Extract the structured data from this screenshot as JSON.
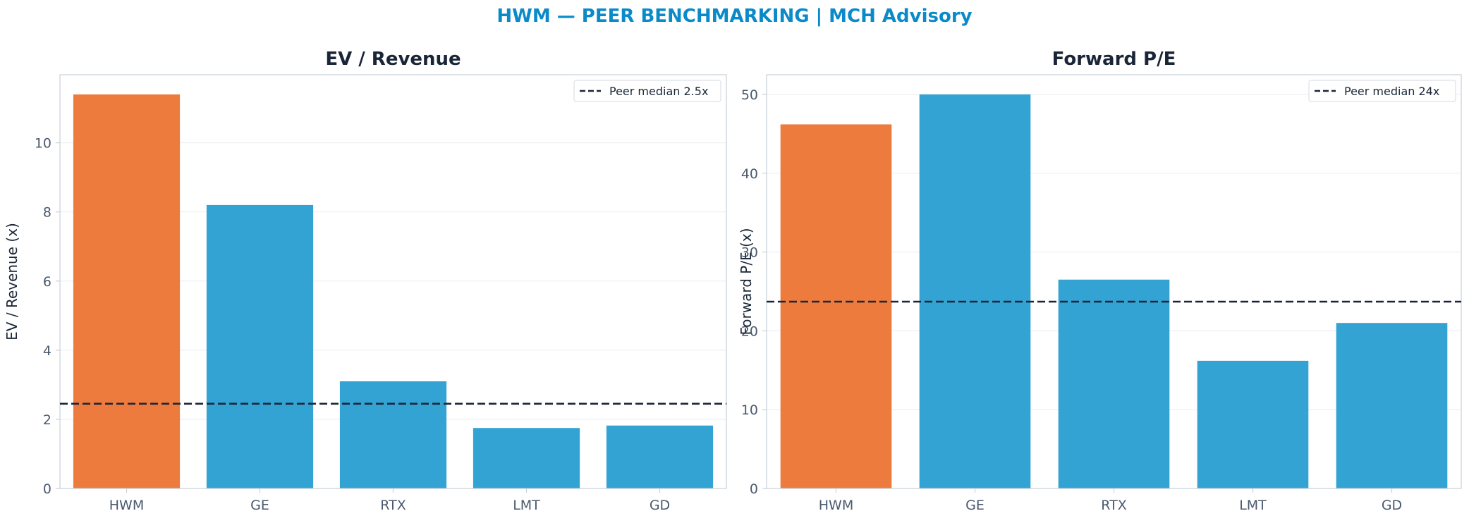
{
  "suptitle": "HWM — PEER BENCHMARKING | MCH Advisory",
  "colors": {
    "highlight": "#ee7b3e",
    "peer": "#33a3d4",
    "median_line": "#1a2638",
    "title": "#0b8ac9"
  },
  "chart_data": [
    {
      "type": "bar",
      "title": "EV / Revenue",
      "ylabel": "EV / Revenue (x)",
      "categories": [
        "HWM",
        "GE",
        "RTX",
        "LMT",
        "GD"
      ],
      "values": [
        11.4,
        8.2,
        3.1,
        1.75,
        1.82
      ],
      "highlight_index": 0,
      "ylim": [
        0,
        11.97
      ],
      "yticks": [
        0,
        2,
        4,
        6,
        8,
        10
      ],
      "reference_line": {
        "value": 2.45,
        "label": "Peer median 2.5x"
      },
      "grid": true,
      "legend": "upper-right"
    },
    {
      "type": "bar",
      "title": "Forward P/E",
      "ylabel": "Forward P/E (x)",
      "categories": [
        "HWM",
        "GE",
        "RTX",
        "LMT",
        "GD"
      ],
      "values": [
        46.2,
        50.0,
        26.5,
        16.2,
        21.0
      ],
      "highlight_index": 0,
      "ylim": [
        0,
        52.5
      ],
      "yticks": [
        0,
        10,
        20,
        30,
        40,
        50
      ],
      "reference_line": {
        "value": 23.7,
        "label": "Peer median 24x"
      },
      "grid": true,
      "legend": "upper-right"
    }
  ]
}
